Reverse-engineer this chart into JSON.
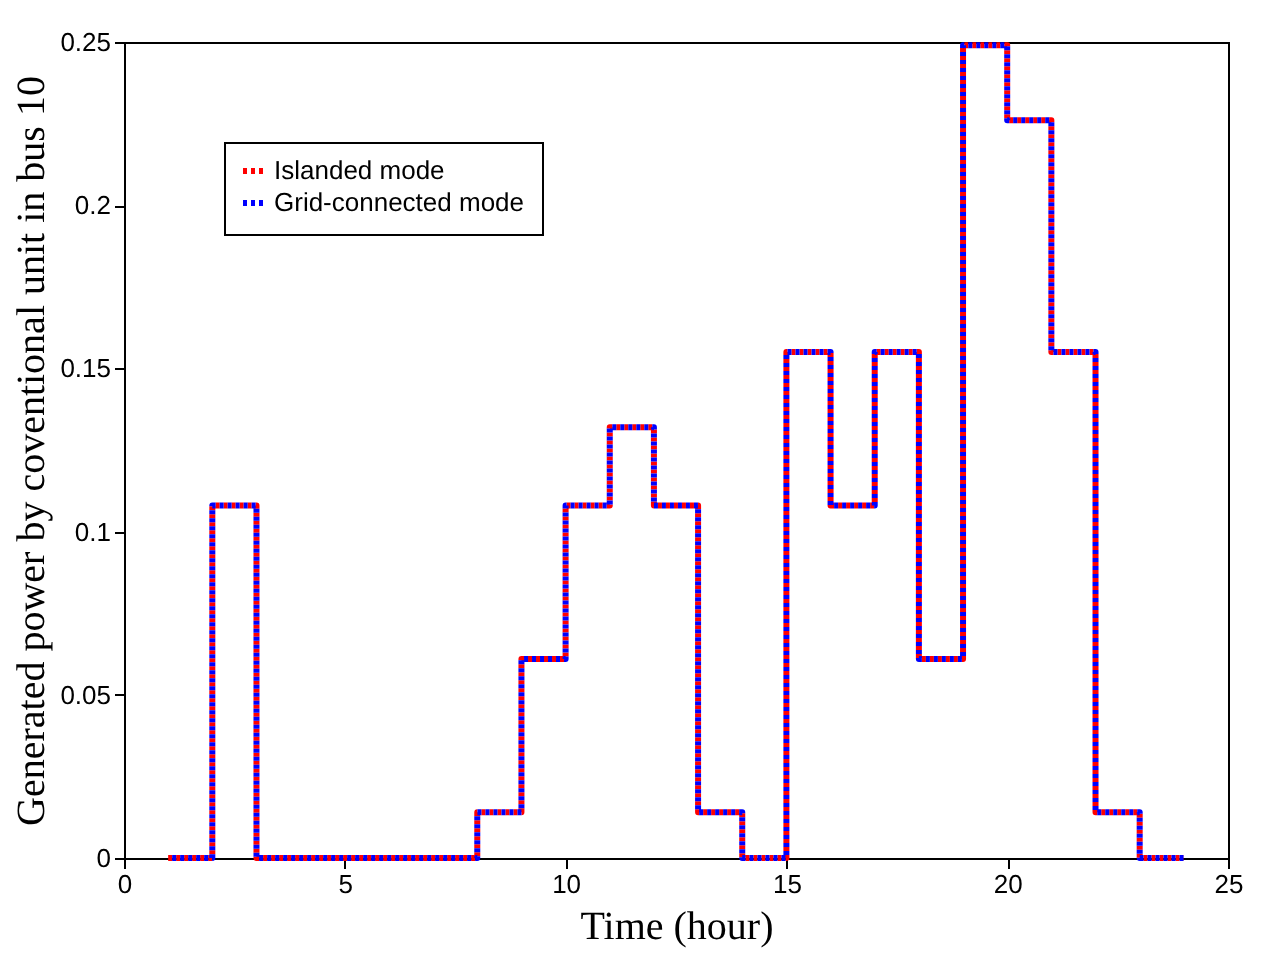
{
  "chart_data": {
    "type": "step",
    "xlabel": "Time (hour)",
    "ylabel": "Generated power by coventional unit in bus 10",
    "x": [
      1,
      2,
      3,
      4,
      5,
      6,
      7,
      8,
      9,
      10,
      11,
      12,
      13,
      14,
      15,
      16,
      17,
      18,
      19,
      20,
      21,
      22,
      23,
      24
    ],
    "series": [
      {
        "name": "Islanded mode",
        "color": "#ff0000",
        "values": [
          0,
          0.108,
          0,
          0,
          0,
          0,
          0,
          0.014,
          0.061,
          0.108,
          0.132,
          0.108,
          0.014,
          0,
          0.155,
          0.108,
          0.155,
          0.061,
          0.249,
          0.226,
          0.155,
          0.014,
          0,
          0
        ]
      },
      {
        "name": "Grid-connected mode",
        "color": "#0000ff",
        "values": [
          0,
          0.108,
          0,
          0,
          0,
          0,
          0,
          0.014,
          0.061,
          0.108,
          0.132,
          0.108,
          0.014,
          0,
          0.155,
          0.108,
          0.155,
          0.061,
          0.249,
          0.226,
          0.155,
          0.014,
          0,
          0
        ]
      }
    ],
    "xlim": [
      0,
      25
    ],
    "xticks": [
      0,
      5,
      10,
      15,
      20,
      25
    ],
    "ylim": [
      0,
      0.25
    ],
    "yticks": [
      0,
      0.05,
      0.1,
      0.15,
      0.2,
      0.25
    ],
    "grid": false,
    "legend": "top left",
    "line_style": "dotted",
    "marker": "none"
  }
}
